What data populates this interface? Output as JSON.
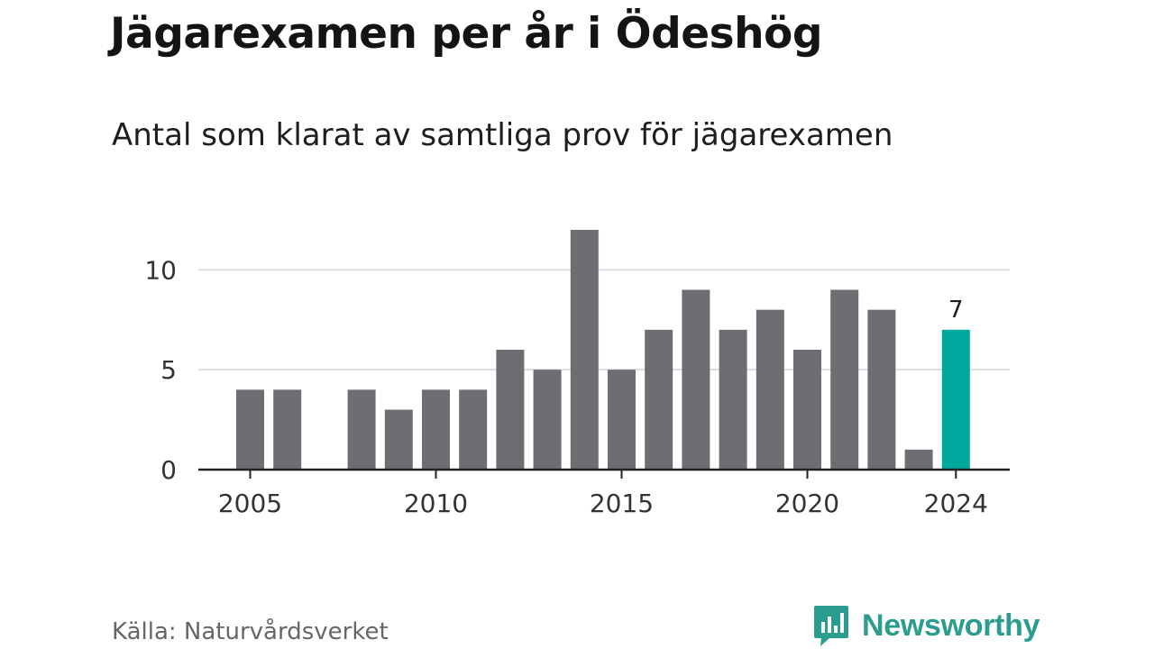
{
  "title": "Jägarexamen per år i Ödeshög",
  "subtitle": "Antal som klarat av samtliga prov för jägarexamen",
  "source": "Källa: Naturvårdsverket",
  "brand": {
    "name": "Newsworthy",
    "icon": "bar-chart-speech-bubble-icon"
  },
  "colors": {
    "bar": "#6e6d74",
    "highlight": "#00a99d",
    "grid": "#dddddd",
    "axis": "#222222",
    "brand": "#2a9d8f"
  },
  "chart_data": {
    "type": "bar",
    "title": "Jägarexamen per år i Ödeshög",
    "subtitle": "Antal som klarat av samtliga prov för jägarexamen",
    "xlabel": "",
    "ylabel": "",
    "x": [
      2005,
      2006,
      2007,
      2008,
      2009,
      2010,
      2011,
      2012,
      2013,
      2014,
      2015,
      2016,
      2017,
      2018,
      2019,
      2020,
      2021,
      2022,
      2023,
      2024
    ],
    "values": [
      4,
      4,
      null,
      4,
      3,
      4,
      4,
      6,
      5,
      12,
      5,
      7,
      9,
      7,
      8,
      6,
      9,
      8,
      1,
      7
    ],
    "xticks": [
      "2005",
      "2010",
      "2015",
      "2020",
      "2024"
    ],
    "yticks": [
      0,
      5,
      10
    ],
    "ylim": [
      0,
      12
    ],
    "grid": true,
    "highlight": {
      "x": 2024,
      "label": "7"
    }
  }
}
